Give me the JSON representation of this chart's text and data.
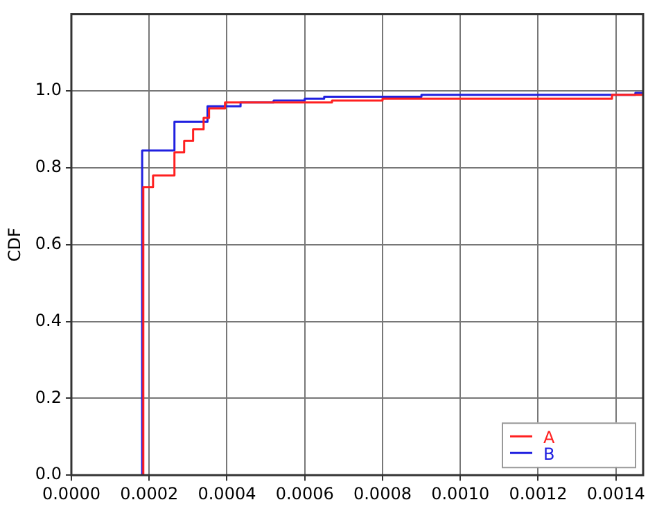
{
  "chart_data": {
    "type": "step",
    "ylabel": "CDF",
    "xlim": [
      0,
      0.00147
    ],
    "ylim": [
      0,
      1.2
    ],
    "xticks": [
      {
        "value": 0,
        "label": "0.0000"
      },
      {
        "value": 0.0002,
        "label": "0.0002"
      },
      {
        "value": 0.0004,
        "label": "0.0004"
      },
      {
        "value": 0.0006,
        "label": "0.0006"
      },
      {
        "value": 0.0008,
        "label": "0.0008"
      },
      {
        "value": 0.001,
        "label": "0.0010"
      },
      {
        "value": 0.0012,
        "label": "0.0012"
      },
      {
        "value": 0.0014,
        "label": "0.0014"
      }
    ],
    "yticks": [
      {
        "value": 0,
        "label": "0.0"
      },
      {
        "value": 0.2,
        "label": "0.2"
      },
      {
        "value": 0.4,
        "label": "0.4"
      },
      {
        "value": 0.6,
        "label": "0.6"
      },
      {
        "value": 0.8,
        "label": "0.8"
      },
      {
        "value": 1,
        "label": "1.0"
      }
    ],
    "grid": true,
    "legend": "bottom right",
    "marker": "none",
    "line_style": "solid",
    "series": [
      {
        "name": "A",
        "color": "#ff2020",
        "x": [
          0.000185,
          0.000185,
          0.00021,
          0.000265,
          0.00029,
          0.000313,
          0.00034,
          0.000354,
          0.000395,
          0.00067,
          0.0008,
          0.00139,
          0.00147
        ],
        "values": [
          0,
          0.75,
          0.78,
          0.84,
          0.87,
          0.9,
          0.93,
          0.955,
          0.97,
          0.975,
          0.98,
          0.99,
          0.99
        ]
      },
      {
        "name": "B",
        "color": "#2020e0",
        "x": [
          0.000182,
          0.000182,
          0.000265,
          0.00035,
          0.000435,
          0.00052,
          0.0006,
          0.00065,
          0.0009,
          0.00145,
          0.00147
        ],
        "values": [
          0,
          0.845,
          0.92,
          0.96,
          0.97,
          0.975,
          0.98,
          0.985,
          0.99,
          0.995,
          0.995
        ]
      }
    ]
  }
}
